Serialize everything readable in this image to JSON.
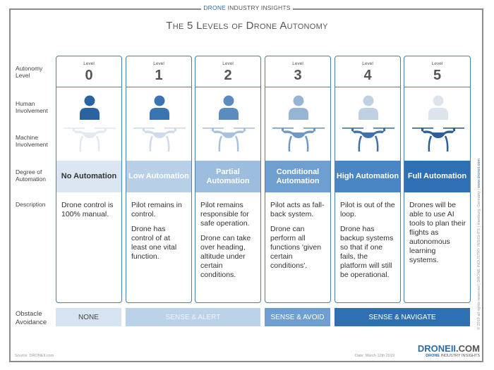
{
  "header": {
    "brand_top_a": "DRONE",
    "brand_top_b": "INDUSTRY INSIGHTS",
    "title": "The 5 Levels of Drone Autonomy"
  },
  "row_labels": {
    "autonomy": "Autonomy Level",
    "human": "Human Involvement",
    "machine": "Machine Involvement",
    "degree": "Degree of Automation",
    "description": "Description",
    "obstacle": "Obstacle Avoidance"
  },
  "levels": [
    {
      "level_label": "Level",
      "number": "0",
      "degree": "No Automation",
      "degree_bg": "#dbe6f2",
      "degree_color": "#333333",
      "person_color": "#2a64a0",
      "drone_color": "#e3e9f0",
      "description": [
        "Drone control is 100% manual."
      ]
    },
    {
      "level_label": "Level",
      "number": "1",
      "degree": "Low Automation",
      "degree_bg": "#b7cfe7",
      "degree_color": "#ffffff",
      "person_color": "#3a74b0",
      "drone_color": "#cddbea",
      "description": [
        "Pilot remains in control.",
        "Drone has control of at least one vital function."
      ]
    },
    {
      "level_label": "Level",
      "number": "2",
      "degree": "Partial Automation",
      "degree_bg": "#9cbddd",
      "degree_color": "#ffffff",
      "person_color": "#5b8bbf",
      "drone_color": "#a9c2dc",
      "description": [
        "Pilot remains responsible for safe operation.",
        "Drone can take over heading, altitude under certain conditions."
      ]
    },
    {
      "level_label": "Level",
      "number": "3",
      "degree": "Conditional Automation",
      "degree_bg": "#6f9fd0",
      "degree_color": "#ffffff",
      "person_color": "#97b4d3",
      "drone_color": "#6f98c4",
      "description": [
        "Pilot acts as fall-back system.",
        "Drone can perform all functions 'given certain conditions'."
      ]
    },
    {
      "level_label": "Level",
      "number": "4",
      "degree": "High Automation",
      "degree_bg": "#4a86c4",
      "degree_color": "#ffffff",
      "person_color": "#bfd0e2",
      "drone_color": "#3d72ab",
      "description": [
        "Pilot is out of the loop.",
        "Drone has backup systems so that if one fails, the platform will still be operational."
      ]
    },
    {
      "level_label": "Level",
      "number": "5",
      "degree": "Full Automation",
      "degree_bg": "#2f6fb3",
      "degree_color": "#ffffff",
      "person_color": "#dde4ec",
      "drone_color": "#2a5f98",
      "description": [
        "Drones will be able to use AI tools to plan their flights as autonomous learning systems."
      ]
    }
  ],
  "obstacle": [
    {
      "label": "NONE",
      "bg": "#d6e3f0",
      "color": "#444444"
    },
    {
      "label": "SENSE & ALERT",
      "bg": "#bcd2e8",
      "color": "#eef3f9"
    },
    {
      "label": "SENSE & AVOID",
      "bg": "#6f9fd0",
      "color": "#ffffff"
    },
    {
      "label": "SENSE & NAVIGATE",
      "bg": "#2f6fb3",
      "color": "#ffffff"
    }
  ],
  "side_text": "© 2019 all rights reserved | DRONE INDUSTRY INSIGHTS | Hamburg, Germany | ",
  "side_link": "www.droneii.com",
  "footer": {
    "source": "Source: DRONEII.com",
    "date": "Date: March 12th 2019",
    "logo_a": "DRONEII",
    "logo_b": ".COM",
    "logo_c": "DRONE",
    "logo_d": "INDUSTRY INSIGHTS"
  }
}
